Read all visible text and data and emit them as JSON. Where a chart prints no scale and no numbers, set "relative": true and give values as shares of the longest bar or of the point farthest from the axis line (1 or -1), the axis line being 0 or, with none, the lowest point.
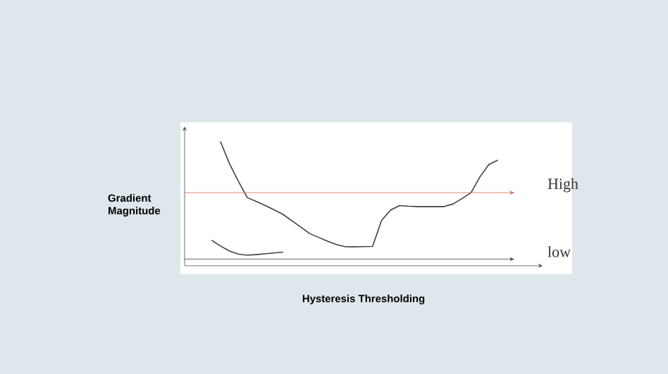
{
  "chart_data": {
    "type": "line",
    "relative": true,
    "xlabel": "Hysteresis Thresholding",
    "ylabel": "Gradient Magnitude",
    "tick_labels": false,
    "categories": [
      null,
      null,
      null,
      null,
      null,
      null,
      null,
      null,
      null,
      null,
      null,
      null,
      null,
      null,
      null,
      null,
      null,
      null,
      null,
      null,
      null,
      null,
      null,
      null,
      null,
      null,
      null,
      null,
      null,
      null,
      null,
      null,
      null,
      null,
      null,
      null,
      null,
      null,
      null,
      null,
      null
    ],
    "series": [
      {
        "color": "#404040",
        "values": [
          null,
          null,
          null,
          null,
          1.0,
          0.824,
          0.681,
          0.548,
          0.517,
          0.485,
          0.45,
          0.413,
          0.361,
          0.31,
          0.258,
          0.227,
          0.196,
          0.17,
          0.153,
          0.152,
          0.154,
          0.156,
          0.363,
          0.447,
          0.484,
          0.479,
          0.476,
          0.476,
          0.476,
          0.476,
          0.497,
          0.541,
          0.588,
          0.715,
          0.815,
          0.85,
          null,
          null,
          null,
          null,
          null
        ]
      },
      {
        "color": "#404040",
        "values": [
          null,
          null,
          null,
          0.206,
          0.159,
          0.119,
          0.093,
          0.085,
          0.09,
          0.096,
          0.103,
          0.109,
          null,
          null,
          null,
          null,
          null,
          null,
          null,
          null,
          null,
          null,
          null,
          null,
          null,
          null,
          null,
          null,
          null,
          null,
          null,
          null,
          null,
          null,
          null,
          null,
          null,
          null,
          null,
          null,
          null
        ]
      }
    ],
    "ref_lines": [
      {
        "axis": "y",
        "value": 0.588,
        "label": "High",
        "color": "#d9694a"
      },
      {
        "axis": "y",
        "value": 0.053,
        "label": "low",
        "color": "#404040"
      }
    ]
  }
}
